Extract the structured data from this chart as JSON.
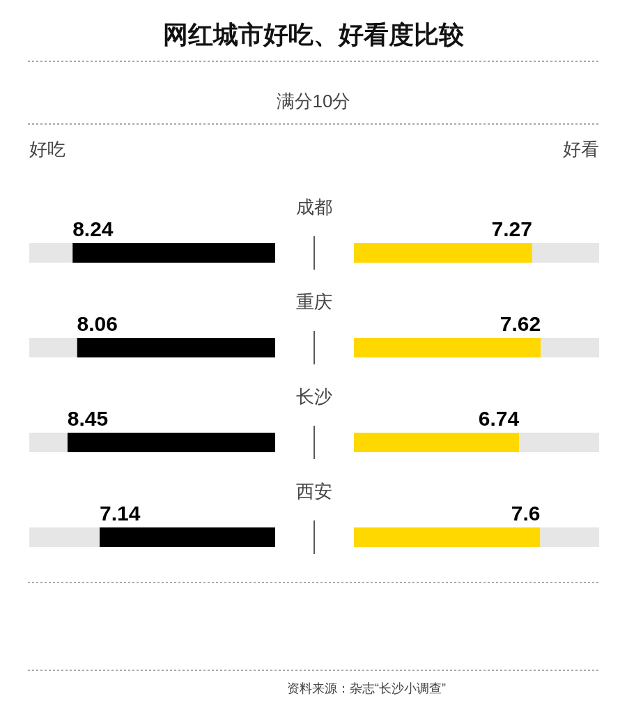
{
  "chart_data": [
    {
      "type": "bar",
      "orientation": "horizontal",
      "stacked": true,
      "title": "网红城市好吃、好看度比较",
      "subtitle": "满分10分",
      "categories": [
        "成都",
        "重庆",
        "长沙",
        "西安"
      ],
      "series": [
        {
          "name": "好吃",
          "color": "#000000",
          "values": [
            8.24,
            8.06,
            8.45,
            7.14
          ],
          "value_labels": [
            "8.24",
            "8.06",
            "8.45",
            "7.14"
          ]
        },
        {
          "color": "#e6e6e6",
          "values": [
            1.76,
            1.94,
            1.55,
            2.86
          ]
        }
      ],
      "xlim": [
        10,
        0
      ],
      "tick_labels": false
    },
    {
      "type": "bar",
      "orientation": "horizontal",
      "stacked": true,
      "categories": [
        null,
        null,
        null,
        null
      ],
      "series": [
        {
          "name": "好看",
          "color": "#ffd800",
          "values": [
            7.27,
            7.62,
            6.74,
            7.6
          ],
          "value_labels": [
            "7.27",
            "7.62",
            "6.74",
            "7.6"
          ]
        },
        {
          "color": "#e6e6e6",
          "values": [
            2.73,
            2.38,
            3.26,
            2.4
          ]
        }
      ],
      "xlim": [
        0,
        10
      ],
      "tick_labels": false,
      "annotations": [
        "资料来源：杂志“长沙小调查”"
      ]
    }
  ]
}
